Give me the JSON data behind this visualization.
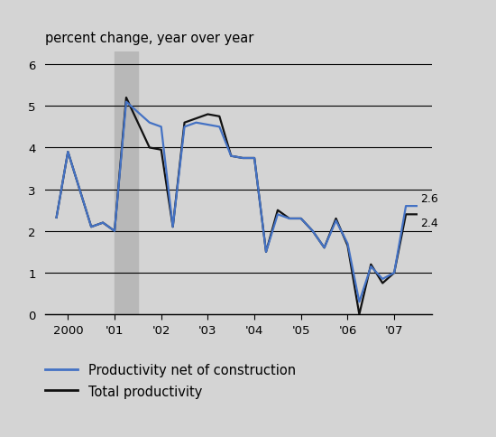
{
  "title_ylabel": "percent change, year over year",
  "background_color": "#d4d4d4",
  "plot_bg_color": "#d4d4d4",
  "recession_shade": [
    2001.0,
    2001.5
  ],
  "recession_color": "#b8b8b8",
  "xlim": [
    1999.5,
    2007.8
  ],
  "ylim": [
    0,
    6.3
  ],
  "yticks": [
    0,
    1,
    2,
    3,
    4,
    5,
    6
  ],
  "xtick_labels": [
    "2000",
    "'01",
    "'02",
    "'03",
    "'04",
    "'05",
    "'06",
    "'07"
  ],
  "xtick_positions": [
    2000,
    2001,
    2002,
    2003,
    2004,
    2005,
    2006,
    2007
  ],
  "end_label_blue": "2.6",
  "end_label_black": "2.4",
  "total_productivity": {
    "x": [
      1999.75,
      2000.0,
      2000.25,
      2000.5,
      2000.75,
      2001.0,
      2001.25,
      2001.75,
      2002.0,
      2002.25,
      2002.5,
      2002.75,
      2003.0,
      2003.25,
      2003.5,
      2003.75,
      2004.0,
      2004.25,
      2004.5,
      2004.75,
      2005.0,
      2005.25,
      2005.5,
      2005.75,
      2006.0,
      2006.25,
      2006.5,
      2006.75,
      2007.0,
      2007.25,
      2007.5
    ],
    "y": [
      2.3,
      3.9,
      3.0,
      2.1,
      2.2,
      2.0,
      5.2,
      4.0,
      3.95,
      2.1,
      4.6,
      4.7,
      4.8,
      4.75,
      3.8,
      3.75,
      3.75,
      1.5,
      2.5,
      2.3,
      2.3,
      2.0,
      1.6,
      2.3,
      1.65,
      0.0,
      1.2,
      0.75,
      1.0,
      2.4,
      2.4
    ],
    "color": "#111111",
    "linewidth": 1.6,
    "label": "Total productivity"
  },
  "net_productivity": {
    "x": [
      1999.75,
      2000.0,
      2000.25,
      2000.5,
      2000.75,
      2001.0,
      2001.25,
      2001.75,
      2002.0,
      2002.25,
      2002.5,
      2002.75,
      2003.0,
      2003.25,
      2003.5,
      2003.75,
      2004.0,
      2004.25,
      2004.5,
      2004.75,
      2005.0,
      2005.25,
      2005.5,
      2005.75,
      2006.0,
      2006.25,
      2006.5,
      2006.75,
      2007.0,
      2007.25,
      2007.5
    ],
    "y": [
      2.3,
      3.9,
      3.0,
      2.1,
      2.2,
      2.0,
      5.1,
      4.6,
      4.5,
      2.1,
      4.5,
      4.6,
      4.55,
      4.5,
      3.8,
      3.75,
      3.75,
      1.5,
      2.4,
      2.3,
      2.3,
      2.0,
      1.6,
      2.25,
      1.7,
      0.3,
      1.15,
      0.85,
      1.0,
      2.6,
      2.6
    ],
    "color": "#4472c4",
    "linewidth": 1.6,
    "label": "Productivity net of construction"
  },
  "legend_blue_color": "#4472c4",
  "legend_black_color": "#111111",
  "legend_fontsize": 10.5,
  "ylabel_fontsize": 10.5
}
